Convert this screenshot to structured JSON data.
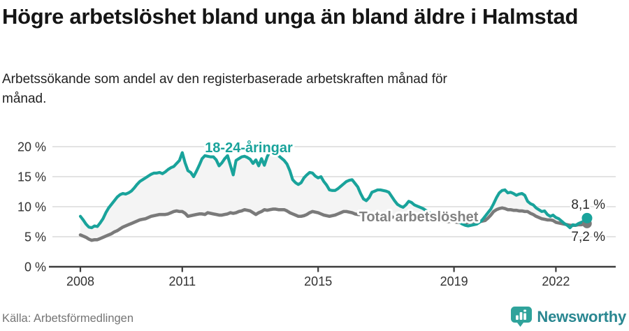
{
  "header": {
    "title": "Högre arbetslöshet bland unga än bland äldre i Halmstad",
    "subtitle": "Arbetssökande som andel av den registerbaserade arbetskraften månad för månad."
  },
  "footer": {
    "source": "Källa: Arbetsförmedlingen",
    "brand": "Newsworthy"
  },
  "colors": {
    "youth_line": "#19a39b",
    "total_line": "#7a7a7a",
    "between_area": "#f4f4f4",
    "gridline": "#e3e3e3",
    "axis": "#3d3d3d",
    "tick_label": "#333333",
    "end_label": "#2b2b2b",
    "total_label": "#828282",
    "brand_icon": "#2fa39b",
    "brand_text": "#2a8791"
  },
  "chart_data": {
    "type": "line",
    "frequency": "monthly",
    "start": "2008-01",
    "end": "2022-12",
    "grid": "horizontal",
    "ylim": [
      0,
      21.5
    ],
    "x_ticks": [
      {
        "value": 2008,
        "label": "2008"
      },
      {
        "value": 2011,
        "label": "2011"
      },
      {
        "value": 2015,
        "label": "2015"
      },
      {
        "value": 2019,
        "label": "2019"
      },
      {
        "value": 2022,
        "label": "2022"
      }
    ],
    "y_ticks": [
      {
        "value": 0,
        "label": "0 %"
      },
      {
        "value": 5,
        "label": "5 %"
      },
      {
        "value": 10,
        "label": "10 %"
      },
      {
        "value": 15,
        "label": "15 %"
      },
      {
        "value": 20,
        "label": "20 %"
      }
    ],
    "series": [
      {
        "name": "18-24-aringar",
        "label": "18-24-åringar",
        "color": "#19a39b",
        "end_value": 8.1,
        "end_label": "8,1 %",
        "values": [
          8.4,
          7.8,
          7.1,
          6.6,
          6.5,
          6.8,
          6.7,
          7.3,
          8.0,
          9.0,
          9.8,
          10.4,
          11.0,
          11.6,
          12.0,
          12.2,
          12.1,
          12.3,
          12.6,
          13.1,
          13.7,
          14.2,
          14.5,
          14.8,
          15.1,
          15.4,
          15.6,
          15.6,
          15.7,
          15.5,
          15.8,
          16.2,
          16.5,
          16.7,
          17.2,
          17.7,
          19.0,
          17.3,
          16.0,
          15.7,
          15.0,
          15.9,
          16.9,
          18.0,
          18.5,
          18.4,
          18.3,
          18.3,
          17.8,
          16.8,
          17.3,
          18.0,
          18.5,
          16.9,
          15.3,
          17.7,
          18.0,
          18.3,
          18.4,
          18.2,
          17.9,
          17.2,
          17.8,
          16.8,
          18.0,
          16.9,
          18.3,
          19.3,
          19.0,
          18.8,
          18.5,
          18.1,
          17.7,
          17.1,
          16.0,
          14.5,
          14.0,
          13.7,
          14.0,
          14.8,
          15.3,
          15.7,
          15.6,
          15.1,
          14.8,
          15.0,
          14.2,
          13.6,
          12.8,
          12.7,
          12.7,
          13.0,
          13.4,
          13.8,
          14.2,
          14.4,
          14.5,
          13.9,
          13.3,
          12.2,
          11.3,
          11.0,
          11.5,
          12.4,
          12.6,
          12.8,
          12.8,
          12.7,
          12.6,
          12.4,
          11.7,
          11.0,
          10.4,
          10.1,
          9.9,
          10.3,
          10.9,
          10.7,
          10.3,
          10.1,
          9.9,
          9.7,
          9.4,
          9.1,
          8.8,
          8.6,
          8.5,
          8.7,
          8.9,
          8.7,
          8.4,
          8.2,
          8.0,
          7.7,
          7.4,
          7.1,
          6.9,
          6.8,
          6.9,
          7.0,
          7.1,
          7.4,
          7.8,
          8.4,
          9.0,
          9.6,
          10.5,
          11.5,
          12.3,
          12.7,
          12.8,
          12.3,
          12.4,
          12.2,
          11.9,
          12.1,
          12.2,
          11.9,
          10.9,
          10.5,
          10.3,
          9.8,
          9.5,
          9.2,
          9.3,
          8.7,
          8.4,
          8.6,
          8.2,
          8.0,
          7.6,
          7.2,
          6.9,
          6.5,
          7.0,
          6.9,
          7.2,
          7.4,
          7.6,
          8.1
        ]
      },
      {
        "name": "total-arbetsloshet",
        "label": "Total arbetslöshet",
        "color": "#7a7a7a",
        "end_value": 7.2,
        "end_label": "7,2 %",
        "values": [
          5.3,
          5.1,
          4.9,
          4.6,
          4.4,
          4.5,
          4.5,
          4.7,
          4.9,
          5.1,
          5.3,
          5.5,
          5.8,
          6.0,
          6.3,
          6.6,
          6.8,
          7.0,
          7.2,
          7.4,
          7.6,
          7.8,
          7.9,
          8.0,
          8.2,
          8.4,
          8.5,
          8.6,
          8.7,
          8.7,
          8.7,
          8.8,
          9.0,
          9.2,
          9.3,
          9.2,
          9.2,
          8.9,
          8.4,
          8.5,
          8.6,
          8.7,
          8.8,
          8.8,
          8.7,
          9.0,
          8.9,
          8.8,
          8.7,
          8.6,
          8.6,
          8.7,
          8.8,
          9.0,
          8.9,
          9.0,
          9.2,
          9.3,
          9.5,
          9.4,
          9.3,
          9.0,
          8.7,
          9.0,
          9.2,
          9.5,
          9.4,
          9.5,
          9.6,
          9.6,
          9.5,
          9.5,
          9.5,
          9.3,
          9.0,
          8.8,
          8.6,
          8.4,
          8.4,
          8.5,
          8.7,
          9.0,
          9.2,
          9.1,
          9.0,
          8.8,
          8.6,
          8.5,
          8.4,
          8.5,
          8.6,
          8.8,
          9.0,
          9.2,
          9.2,
          9.1,
          9.0,
          8.8,
          8.7,
          8.7,
          8.6,
          8.7,
          8.8,
          8.8,
          8.7,
          8.7,
          8.6,
          8.6,
          8.5,
          8.4,
          8.3,
          8.2,
          8.1,
          8.1,
          8.1,
          8.2,
          8.2,
          8.1,
          8.0,
          8.0,
          7.9,
          7.8,
          7.8,
          7.7,
          7.6,
          7.6,
          7.6,
          7.7,
          7.6,
          7.5,
          7.5,
          7.6,
          7.5,
          7.4,
          7.4,
          7.3,
          7.3,
          7.4,
          7.5,
          7.5,
          7.4,
          7.5,
          7.6,
          7.7,
          8.1,
          8.6,
          9.2,
          9.5,
          9.7,
          9.8,
          9.7,
          9.5,
          9.5,
          9.4,
          9.4,
          9.3,
          9.3,
          9.2,
          9.2,
          8.9,
          8.7,
          8.4,
          8.2,
          8.0,
          7.9,
          7.8,
          7.8,
          7.7,
          7.4,
          7.3,
          7.2,
          7.1,
          7.0,
          6.9,
          6.9,
          6.9,
          7.0,
          7.0,
          7.1,
          7.2
        ]
      }
    ]
  }
}
